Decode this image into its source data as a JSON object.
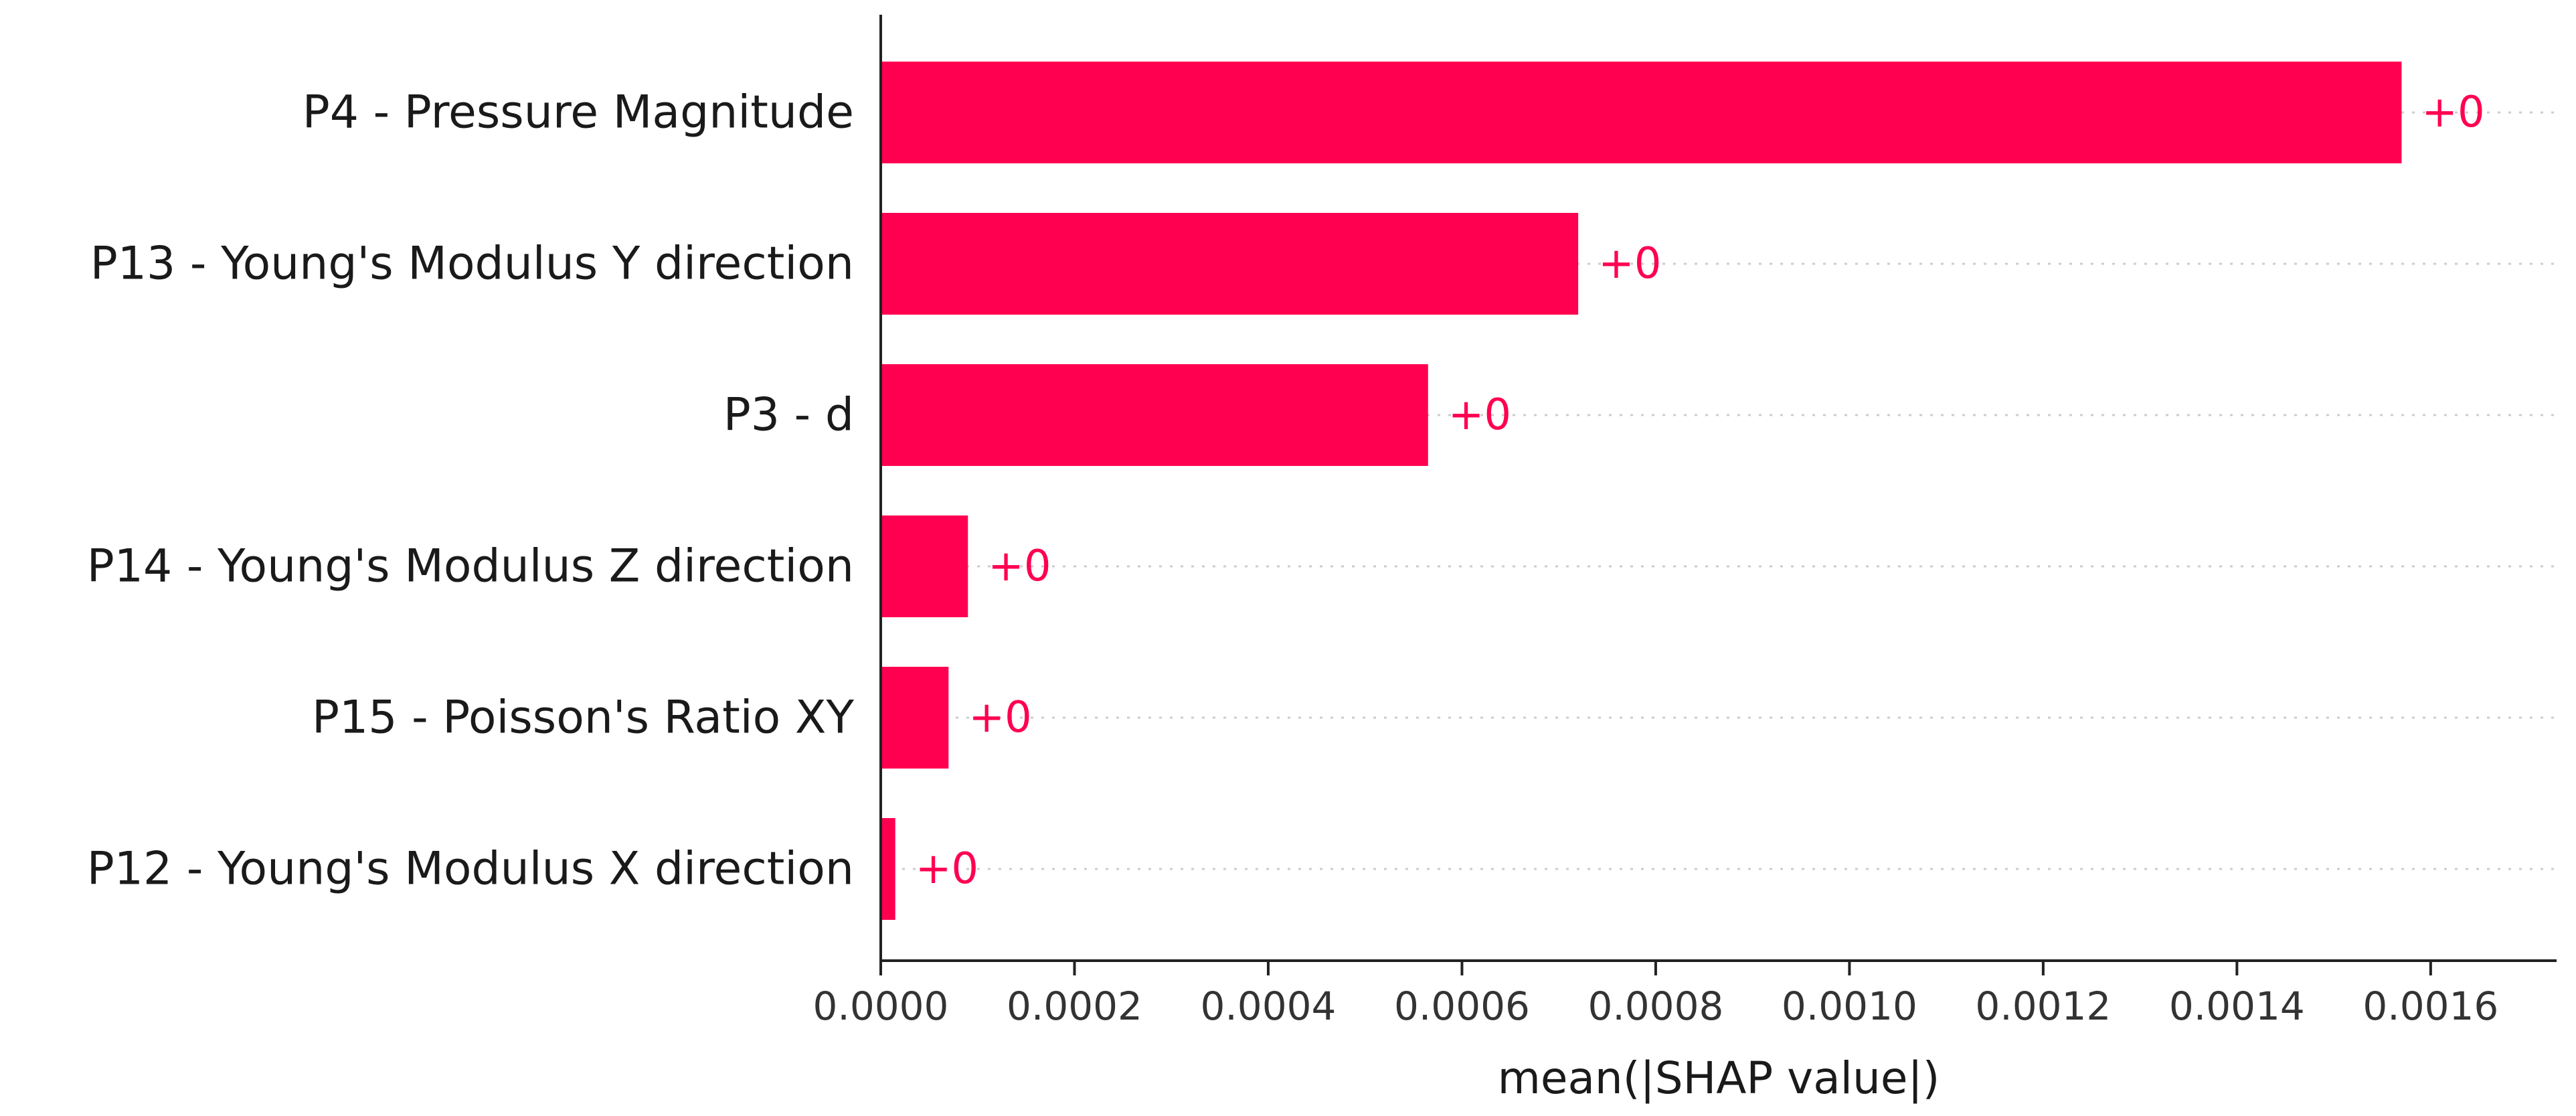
{
  "chart_data": {
    "type": "bar",
    "orientation": "horizontal",
    "categories": [
      "P4 - Pressure Magnitude",
      "P13 - Young's Modulus Y direction",
      "P3 - d",
      "P14 - Young's Modulus Z direction",
      "P15 - Poisson's Ratio XY",
      "P12 - Young's Modulus X direction"
    ],
    "values": [
      0.00157,
      0.00072,
      0.000565,
      9e-05,
      7e-05,
      1.5e-05
    ],
    "data_labels": [
      "+0",
      "+0",
      "+0",
      "+0",
      "+0",
      "+0"
    ],
    "title": "",
    "xlabel": "mean(|SHAP value|)",
    "ylabel": "",
    "xlim": [
      0,
      0.00173
    ],
    "xticks": [
      0,
      0.0002,
      0.0004,
      0.0006,
      0.0008,
      0.001,
      0.0012,
      0.0014,
      0.0016
    ],
    "xtick_labels": [
      "0.0000",
      "0.0002",
      "0.0004",
      "0.0006",
      "0.0008",
      "0.0010",
      "0.0012",
      "0.0014",
      "0.0016"
    ],
    "grid": "horizontal dashed",
    "legend": "none",
    "colors": {
      "bar": "#ff0051",
      "data_label": "#ff0051"
    }
  }
}
